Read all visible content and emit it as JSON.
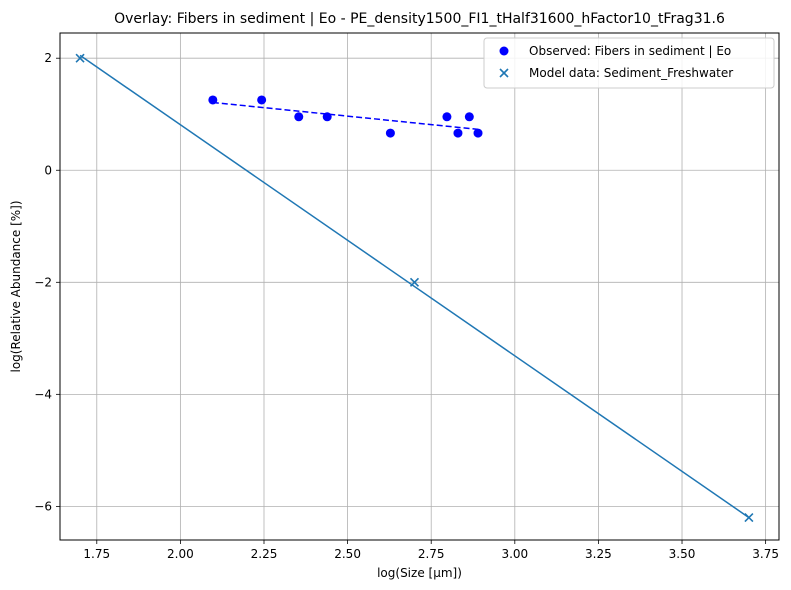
{
  "chart_data": {
    "type": "scatter",
    "title": "Overlay: Fibers in sediment | Eo - PE_density1500_FI1_tHalf31600_hFactor10_tFrag31.6",
    "xlabel": "log(Size [µm])",
    "ylabel": "log(Relative Abundance [%])",
    "xlim": [
      1.64,
      3.79
    ],
    "ylim": [
      -6.6,
      2.45
    ],
    "x_ticks": [
      1.75,
      2.0,
      2.25,
      2.5,
      2.75,
      3.0,
      3.25,
      3.5,
      3.75
    ],
    "x_tick_labels": [
      "1.75",
      "2.00",
      "2.25",
      "2.50",
      "2.75",
      "3.00",
      "3.25",
      "3.50",
      "3.75"
    ],
    "y_ticks": [
      2,
      0,
      -2,
      -4,
      -6
    ],
    "y_tick_labels": [
      "2",
      "0",
      "−2",
      "−4",
      "−6"
    ],
    "grid": true,
    "legend_position": "top-right",
    "series": [
      {
        "name": "Observed: Fibers in sediment | Eo",
        "kind": "scatter",
        "marker": "circle",
        "color": "#0000ff",
        "x": [
          2.097,
          2.243,
          2.354,
          2.439,
          2.628,
          2.797,
          2.83,
          2.864,
          2.89
        ],
        "y": [
          1.255,
          1.255,
          0.954,
          0.954,
          0.663,
          0.954,
          0.663,
          0.954,
          0.663
        ]
      },
      {
        "name": "Model data: Sediment_Freshwater",
        "kind": "scatter",
        "marker": "x",
        "color": "#1f77b4",
        "x": [
          1.7,
          2.7,
          3.7
        ],
        "y": [
          2.0,
          -2.0,
          -6.2
        ]
      }
    ],
    "lines": [
      {
        "kind": "fit-observed",
        "style": "dashed",
        "color": "#0000ff",
        "x": [
          2.097,
          2.89
        ],
        "y": [
          1.21,
          0.73
        ]
      },
      {
        "kind": "fit-model",
        "style": "solid",
        "color": "#1f77b4",
        "x": [
          1.7,
          3.7
        ],
        "y": [
          2.05,
          -6.2
        ]
      }
    ]
  }
}
